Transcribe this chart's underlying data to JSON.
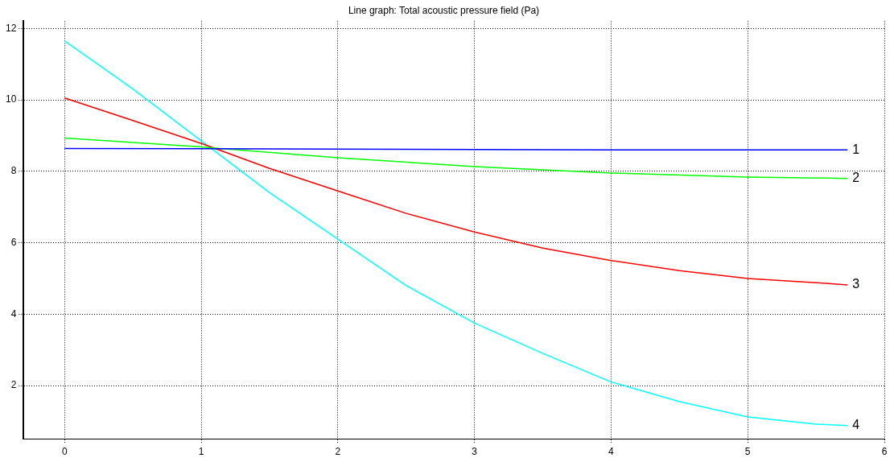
{
  "chart_data": {
    "type": "line",
    "title": "Line graph: Total acoustic pressure field (Pa)",
    "xlim": [
      -0.3,
      6
    ],
    "xticks": [
      0,
      1,
      2,
      3,
      4,
      5,
      6
    ],
    "ylim": [
      0.5,
      12.2
    ],
    "yticks": [
      2,
      4,
      6,
      8,
      10,
      12
    ],
    "grid": true,
    "legend": false,
    "marker": "none",
    "line_style": "solid",
    "series": [
      {
        "name": "1",
        "color": "#0000ff",
        "x": [
          0,
          1,
          2,
          3,
          4,
          5,
          5.73
        ],
        "values": [
          8.64,
          8.63,
          8.62,
          8.61,
          8.6,
          8.6,
          8.6
        ]
      },
      {
        "name": "2",
        "color": "#00ff00",
        "x": [
          0,
          1,
          2,
          3,
          4,
          5,
          5.73
        ],
        "values": [
          8.93,
          8.68,
          8.38,
          8.13,
          7.95,
          7.84,
          7.8
        ]
      },
      {
        "name": "3",
        "color": "#ff0000",
        "x": [
          0,
          0.5,
          1,
          1.5,
          2,
          2.5,
          3,
          3.5,
          4,
          4.5,
          5,
          5.5,
          5.73
        ],
        "values": [
          10.05,
          9.42,
          8.78,
          8.08,
          7.45,
          6.82,
          6.3,
          5.85,
          5.5,
          5.22,
          5.0,
          4.88,
          4.82
        ]
      },
      {
        "name": "4",
        "color": "#00ffff",
        "x": [
          0,
          0.5,
          1,
          1.5,
          2,
          2.5,
          3,
          3.5,
          4,
          4.5,
          5,
          5.5,
          5.73
        ],
        "values": [
          11.65,
          10.3,
          8.85,
          7.4,
          6.1,
          4.8,
          3.75,
          2.9,
          2.1,
          1.55,
          1.12,
          0.92,
          0.88
        ]
      }
    ]
  }
}
